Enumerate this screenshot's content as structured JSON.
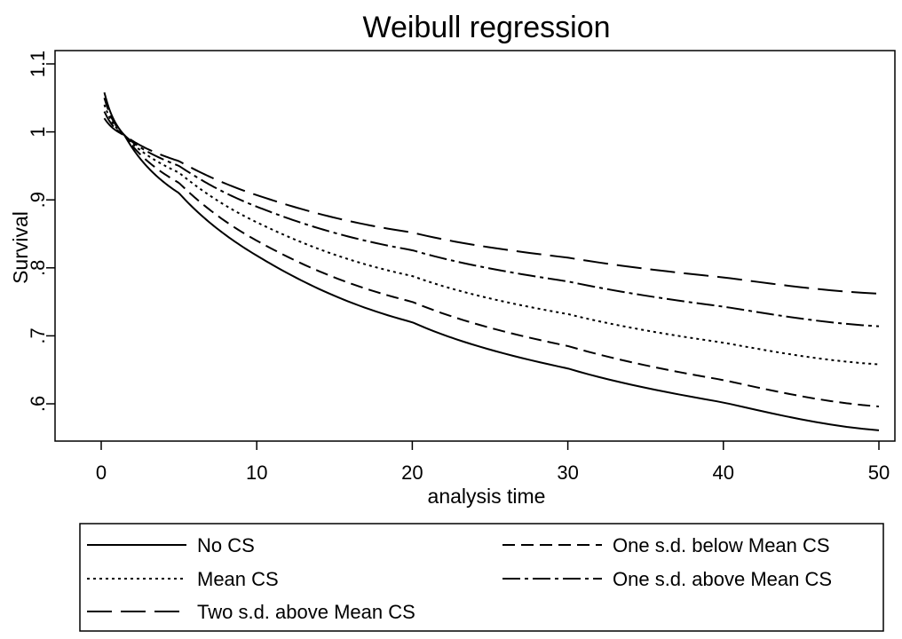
{
  "chart_data": {
    "type": "line",
    "title": "Weibull regression",
    "xlabel": "analysis time",
    "ylabel": "Survival",
    "xlim": [
      0,
      50
    ],
    "ylim": [
      0.55,
      1.1
    ],
    "xticks": [
      0,
      10,
      20,
      30,
      40,
      50
    ],
    "xtick_labels": [
      "0",
      "10",
      "20",
      "30",
      "40",
      "50"
    ],
    "yticks": [
      0.6,
      0.7,
      0.8,
      0.9,
      1.0,
      1.1
    ],
    "ytick_labels": [
      ".6",
      ".7",
      ".8",
      ".9",
      "1",
      "1.1"
    ],
    "grid": false,
    "legend_position": "bottom",
    "x_range": [
      0.2,
      50
    ],
    "series": [
      {
        "name": "No CS",
        "style": "solid",
        "color": "#000000",
        "x": [
          0.2,
          1.5,
          5,
          10,
          20,
          30,
          40,
          50
        ],
        "y": [
          1.058,
          0.995,
          0.91,
          0.818,
          0.72,
          0.652,
          0.602,
          0.561
        ]
      },
      {
        "name": "One s.d. below Mean CS",
        "style": "dashed",
        "color": "#000000",
        "x": [
          0.2,
          1.5,
          5,
          10,
          20,
          30,
          40,
          50
        ],
        "y": [
          1.05,
          0.995,
          0.925,
          0.84,
          0.75,
          0.685,
          0.635,
          0.596
        ]
      },
      {
        "name": "Mean CS",
        "style": "dotted",
        "color": "#000000",
        "x": [
          0.2,
          1.5,
          5,
          10,
          20,
          30,
          40,
          50
        ],
        "y": [
          1.04,
          0.995,
          0.94,
          0.867,
          0.788,
          0.732,
          0.69,
          0.658
        ]
      },
      {
        "name": "One s.d. above Mean CS",
        "style": "dashdot",
        "color": "#000000",
        "x": [
          0.2,
          1.5,
          5,
          10,
          20,
          30,
          40,
          50
        ],
        "y": [
          1.03,
          0.995,
          0.95,
          0.89,
          0.826,
          0.78,
          0.743,
          0.714
        ]
      },
      {
        "name": "Two s.d. above Mean CS",
        "style": "longdash",
        "color": "#000000",
        "x": [
          0.2,
          1.5,
          5,
          10,
          20,
          30,
          40,
          50
        ],
        "y": [
          1.02,
          0.995,
          0.957,
          0.907,
          0.852,
          0.815,
          0.786,
          0.762
        ]
      }
    ]
  }
}
